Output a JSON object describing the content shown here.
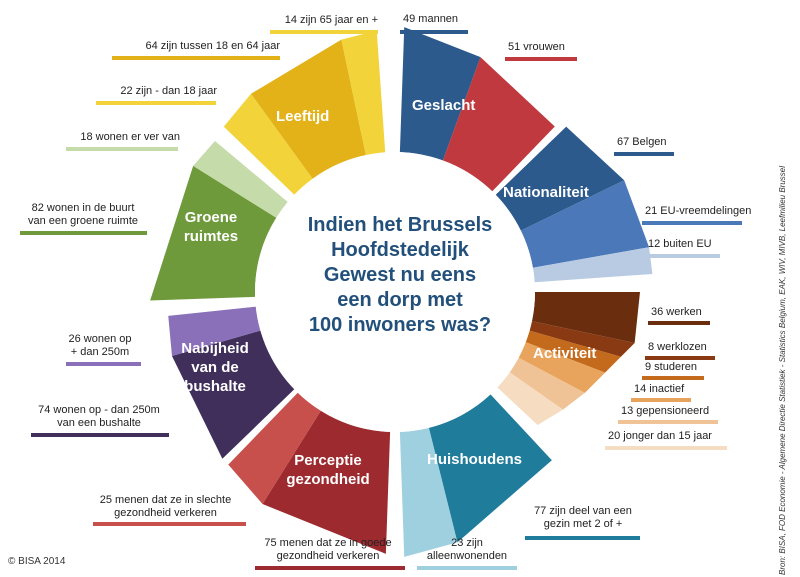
{
  "center_text": [
    "Indien het Brussels",
    "Hoofdstedelijk",
    "Gewest nu eens",
    "een dorp met",
    "100 inwoners was?"
  ],
  "segments": {
    "geslacht": "Geslacht",
    "nationaliteit": "Nationaliteit",
    "activiteit": "Activiteit",
    "huishoudens": "Huishoudens",
    "perceptie": [
      "Perceptie",
      "gezondheid"
    ],
    "bushalte": [
      "Nabijheid",
      "van de",
      "bushalte"
    ],
    "groene": [
      "Groene",
      "ruimtes"
    ],
    "leeftijd": "Leeftijd"
  },
  "labels": {
    "mannen": "49 mannen",
    "vrouwen": "51 vrouwen",
    "belgen": "67 Belgen",
    "eu": "21 EU-vreemdelingen",
    "buiten_eu": "12 buiten EU",
    "werken": "36 werken",
    "werklozen": "8 werklozen",
    "studeren": "9 studeren",
    "inactief": "14 inactief",
    "gepensioneerd": "13 gepensioneerd",
    "jonger": "20 jonger dan 15 jaar",
    "gezin": [
      "77 zijn deel van een",
      "gezin met 2 of +"
    ],
    "alleen": [
      "23 zijn",
      "alleenwonenden"
    ],
    "goede": [
      "75 menen dat ze in goede",
      "gezondheid verkeren"
    ],
    "slechte": [
      "25 menen dat ze in slechte",
      "gezondheid verkeren"
    ],
    "bushalte_ver": [
      "74 wonen op - dan 250m",
      "van een bushalte"
    ],
    "bushalte_dicht": [
      "26 wonen op",
      "+ dan 250m"
    ],
    "buurt": [
      "82 wonen in de buurt",
      "van een groene ruimte"
    ],
    "ver": "18 wonen er ver van",
    "jonger18": "22 zijn - dan 18 jaar",
    "midden": "64 zijn tussen 18 en 64 jaar",
    "ouder": "14 zijn 65 jaar en +"
  },
  "copyright": "© BISA 2014",
  "source": "Bron: BISA, FOD Economie - Algemene Directie Statistiek - Statistics  Belgium, EAK, WIV, MIVB, Leefmilieu Brussel",
  "colors": {
    "blue_dark": "#2c5a8c",
    "red": "#c0393e",
    "blue_mid": "#4a78b8",
    "blue_light": "#b9cbe2",
    "brown": "#6a2e0f",
    "teal": "#1f7c9a",
    "teal_light": "#9fd0e0",
    "maroon": "#9c2a2e",
    "red_light": "#c8504c",
    "purple_dark": "#3f2f5a",
    "purple": "#8a70b8",
    "green": "#6f9a3c",
    "green_light": "#c5dcaa",
    "yellow": "#e2b218",
    "yellow_light": "#f3d33a"
  }
}
